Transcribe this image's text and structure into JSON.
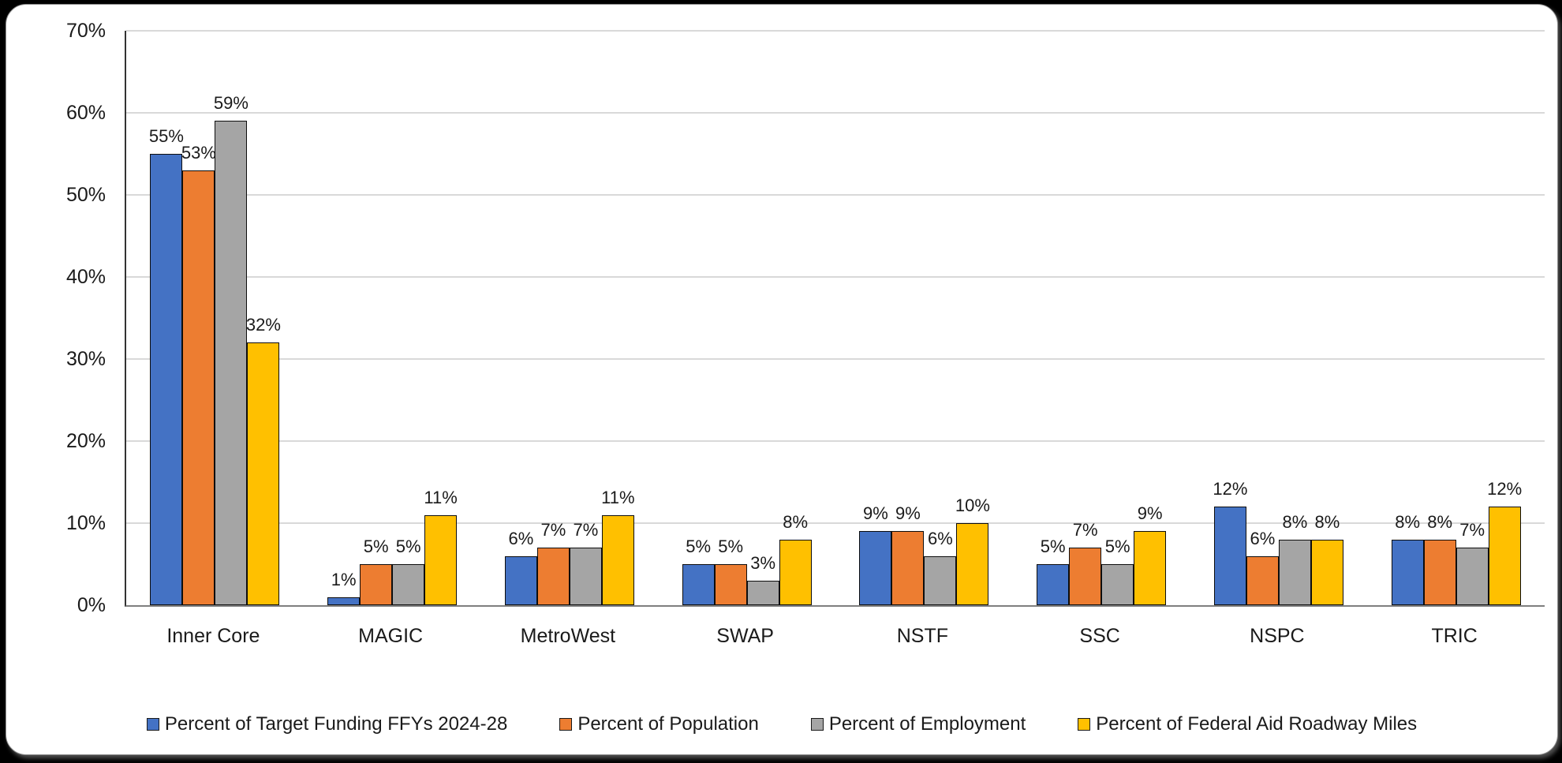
{
  "page": {
    "background_color": "#000000",
    "card_background_color": "#ffffff"
  },
  "chart_data": {
    "type": "bar",
    "title": "",
    "categories": [
      "Inner Core",
      "MAGIC",
      "MetroWest",
      "SWAP",
      "NSTF",
      "SSC",
      "NSPC",
      "TRIC"
    ],
    "series": [
      {
        "name": "Percent of Target Funding FFYs 2024-28",
        "color": "#4472C4",
        "values": [
          55,
          1,
          6,
          5,
          9,
          5,
          12,
          8
        ],
        "labels": [
          "55%",
          "1%",
          "6%",
          "5%",
          "9%",
          "5%",
          "12%",
          "8%"
        ]
      },
      {
        "name": "Percent of Population",
        "color": "#ED7D31",
        "values": [
          53,
          5,
          7,
          5,
          9,
          7,
          6,
          8
        ],
        "labels": [
          "53%",
          "5%",
          "7%",
          "5%",
          "9%",
          "7%",
          "6%",
          "8%"
        ]
      },
      {
        "name": "Percent of Employment",
        "color": "#A5A5A5",
        "values": [
          59,
          5,
          7,
          3,
          6,
          5,
          8,
          7
        ],
        "labels": [
          "59%",
          "5%",
          "7%",
          "3%",
          "6%",
          "5%",
          "8%",
          "7%"
        ]
      },
      {
        "name": "Percent of Federal Aid Roadway Miles",
        "color": "#FFC000",
        "values": [
          32,
          11,
          11,
          8,
          10,
          9,
          8,
          12
        ],
        "labels": [
          "32%",
          "11%",
          "11%",
          "8%",
          "10%",
          "9%",
          "8%",
          "12%"
        ]
      }
    ],
    "y_axis": {
      "min": 0,
      "max": 70,
      "step": 10,
      "tick_labels": [
        "0%",
        "10%",
        "20%",
        "30%",
        "40%",
        "50%",
        "60%",
        "70%"
      ]
    },
    "x_axis": {
      "tick_labels": [
        "Inner Core",
        "MAGIC",
        "MetroWest",
        "SWAP",
        "NSTF",
        "SSC",
        "NSPC",
        "TRIC"
      ]
    },
    "grid": true,
    "legend_position": "bottom",
    "gridline_color": "#d9d9d9",
    "bar_border_color": "#0d0d0d"
  }
}
